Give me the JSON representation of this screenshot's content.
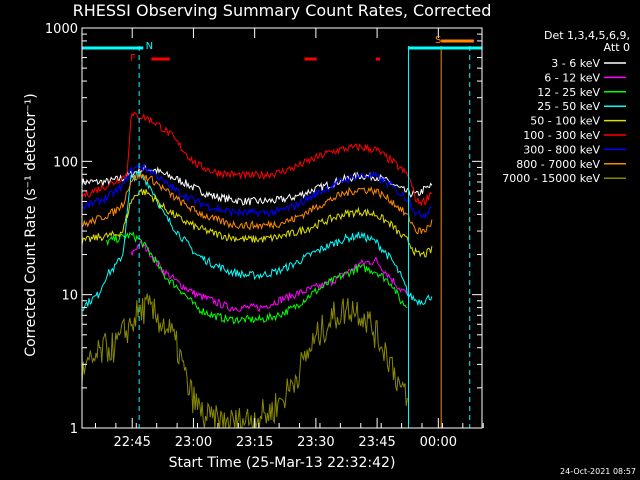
{
  "chart_data": {
    "type": "line",
    "title": "RHESSI Observing Summary Count Rates, Corrected",
    "xlabel": "Start Time (25-Mar-13 22:32:42)",
    "ylabel": "Corrected Count Rate (s⁻¹ detector⁻¹)",
    "yscale": "log",
    "ylim": [
      1,
      1000
    ],
    "xlim_minutes": [
      0,
      98
    ],
    "x_ticks": [
      {
        "label": "22:45",
        "minute": 12.3
      },
      {
        "label": "23:00",
        "minute": 27.3
      },
      {
        "label": "23:15",
        "minute": 42.3
      },
      {
        "label": "23:30",
        "minute": 57.3
      },
      {
        "label": "23:45",
        "minute": 72.3
      },
      {
        "label": "00:00",
        "minute": 87.3
      }
    ],
    "y_ticks": [
      {
        "label": "1",
        "value": 1
      },
      {
        "label": "10",
        "value": 10
      },
      {
        "label": "100",
        "value": 100
      },
      {
        "label": "1000",
        "value": 1000
      }
    ],
    "legend_header": [
      "Det 1,3,4,5,6,9,",
      "Att 0"
    ],
    "legend_position": "top-right",
    "grid": false,
    "series": [
      {
        "name": "3 - 6 keV",
        "color": "#ffffff",
        "points": [
          [
            0,
            70
          ],
          [
            6,
            70
          ],
          [
            10,
            75
          ],
          [
            12,
            80
          ],
          [
            14,
            86
          ],
          [
            16,
            88
          ],
          [
            18,
            86
          ],
          [
            20,
            80
          ],
          [
            24,
            72
          ],
          [
            28,
            62
          ],
          [
            32,
            55
          ],
          [
            36,
            52
          ],
          [
            40,
            50
          ],
          [
            44,
            50
          ],
          [
            48,
            51
          ],
          [
            52,
            54
          ],
          [
            56,
            60
          ],
          [
            60,
            66
          ],
          [
            64,
            73
          ],
          [
            68,
            78
          ],
          [
            72,
            77
          ],
          [
            76,
            68
          ],
          [
            78,
            62
          ],
          [
            80,
            58
          ],
          [
            82,
            56
          ],
          [
            84,
            62
          ],
          [
            86,
            66
          ]
        ]
      },
      {
        "name": "6 - 12 keV",
        "color": "#ff00ff",
        "points": [
          [
            12,
            20
          ],
          [
            14,
            24
          ],
          [
            16,
            22
          ],
          [
            18,
            18
          ],
          [
            20,
            15
          ],
          [
            24,
            12
          ],
          [
            28,
            10
          ],
          [
            32,
            9
          ],
          [
            36,
            8
          ],
          [
            40,
            8
          ],
          [
            44,
            8
          ],
          [
            48,
            9
          ],
          [
            52,
            10
          ],
          [
            56,
            11
          ],
          [
            60,
            12
          ],
          [
            64,
            14
          ],
          [
            68,
            17
          ],
          [
            72,
            18
          ],
          [
            76,
            13
          ],
          [
            78,
            11
          ],
          [
            80,
            10
          ]
        ]
      },
      {
        "name": "12 - 25 keV",
        "color": "#00ff00",
        "points": [
          [
            6,
            25
          ],
          [
            10,
            27
          ],
          [
            12,
            28
          ],
          [
            14,
            26
          ],
          [
            16,
            22
          ],
          [
            18,
            18
          ],
          [
            20,
            14
          ],
          [
            24,
            11
          ],
          [
            28,
            8
          ],
          [
            32,
            7
          ],
          [
            36,
            6.5
          ],
          [
            40,
            6.5
          ],
          [
            44,
            6.5
          ],
          [
            48,
            7
          ],
          [
            52,
            8
          ],
          [
            56,
            10
          ],
          [
            60,
            12
          ],
          [
            64,
            14
          ],
          [
            68,
            16
          ],
          [
            72,
            15
          ],
          [
            76,
            12
          ],
          [
            78,
            9
          ],
          [
            80,
            8
          ]
        ]
      },
      {
        "name": "25 - 50 keV",
        "color": "#00ffff",
        "points": [
          [
            0,
            8
          ],
          [
            2,
            9
          ],
          [
            4,
            10
          ],
          [
            6,
            14
          ],
          [
            8,
            16
          ],
          [
            10,
            20
          ],
          [
            12,
            75
          ],
          [
            14,
            80
          ],
          [
            16,
            70
          ],
          [
            18,
            55
          ],
          [
            20,
            40
          ],
          [
            24,
            28
          ],
          [
            28,
            20
          ],
          [
            32,
            17
          ],
          [
            36,
            15
          ],
          [
            40,
            14
          ],
          [
            44,
            14
          ],
          [
            48,
            15
          ],
          [
            52,
            17
          ],
          [
            56,
            20
          ],
          [
            60,
            23
          ],
          [
            64,
            26
          ],
          [
            68,
            28
          ],
          [
            72,
            25
          ],
          [
            76,
            18
          ],
          [
            78,
            14
          ],
          [
            80,
            10
          ],
          [
            82,
            9
          ],
          [
            84,
            9
          ],
          [
            86,
            10
          ]
        ]
      },
      {
        "name": "50 - 100 keV",
        "color": "#dddd00",
        "points": [
          [
            0,
            25
          ],
          [
            4,
            27
          ],
          [
            8,
            28
          ],
          [
            10,
            30
          ],
          [
            12,
            50
          ],
          [
            14,
            60
          ],
          [
            16,
            58
          ],
          [
            18,
            52
          ],
          [
            20,
            45
          ],
          [
            24,
            37
          ],
          [
            28,
            32
          ],
          [
            32,
            29
          ],
          [
            36,
            27
          ],
          [
            40,
            26
          ],
          [
            44,
            26
          ],
          [
            48,
            27
          ],
          [
            52,
            29
          ],
          [
            56,
            32
          ],
          [
            60,
            36
          ],
          [
            64,
            40
          ],
          [
            68,
            42
          ],
          [
            72,
            40
          ],
          [
            76,
            33
          ],
          [
            78,
            28
          ],
          [
            80,
            25
          ],
          [
            82,
            20
          ],
          [
            84,
            20
          ],
          [
            86,
            22
          ]
        ]
      },
      {
        "name": "100 - 300 keV",
        "color": "#ff0000",
        "points": [
          [
            0,
            55
          ],
          [
            4,
            62
          ],
          [
            8,
            70
          ],
          [
            11,
            80
          ],
          [
            12,
            220
          ],
          [
            14,
            220
          ],
          [
            16,
            210
          ],
          [
            18,
            195
          ],
          [
            20,
            175
          ],
          [
            22,
            155
          ],
          [
            24,
            130
          ],
          [
            26,
            110
          ],
          [
            28,
            95
          ],
          [
            32,
            84
          ],
          [
            36,
            80
          ],
          [
            40,
            78
          ],
          [
            44,
            79
          ],
          [
            48,
            82
          ],
          [
            52,
            90
          ],
          [
            56,
            102
          ],
          [
            60,
            115
          ],
          [
            64,
            124
          ],
          [
            68,
            128
          ],
          [
            72,
            122
          ],
          [
            76,
            100
          ],
          [
            78,
            88
          ],
          [
            80,
            78
          ],
          [
            82,
            50
          ],
          [
            84,
            50
          ],
          [
            86,
            62
          ]
        ]
      },
      {
        "name": "300 - 800 keV",
        "color": "#0000ff",
        "points": [
          [
            0,
            45
          ],
          [
            4,
            50
          ],
          [
            8,
            58
          ],
          [
            10,
            66
          ],
          [
            12,
            85
          ],
          [
            14,
            92
          ],
          [
            16,
            88
          ],
          [
            18,
            80
          ],
          [
            20,
            70
          ],
          [
            24,
            58
          ],
          [
            28,
            50
          ],
          [
            32,
            45
          ],
          [
            36,
            42
          ],
          [
            40,
            41
          ],
          [
            44,
            41
          ],
          [
            48,
            42
          ],
          [
            52,
            46
          ],
          [
            56,
            54
          ],
          [
            60,
            63
          ],
          [
            64,
            72
          ],
          [
            68,
            78
          ],
          [
            72,
            77
          ],
          [
            76,
            65
          ],
          [
            78,
            57
          ],
          [
            80,
            52
          ],
          [
            82,
            40
          ],
          [
            84,
            40
          ],
          [
            86,
            48
          ]
        ]
      },
      {
        "name": "800 - 7000 keV",
        "color": "#ff8800",
        "points": [
          [
            0,
            33
          ],
          [
            4,
            37
          ],
          [
            8,
            42
          ],
          [
            10,
            48
          ],
          [
            12,
            72
          ],
          [
            14,
            78
          ],
          [
            16,
            76
          ],
          [
            18,
            70
          ],
          [
            20,
            62
          ],
          [
            24,
            50
          ],
          [
            28,
            42
          ],
          [
            32,
            37
          ],
          [
            36,
            34
          ],
          [
            40,
            33
          ],
          [
            44,
            33
          ],
          [
            48,
            34
          ],
          [
            52,
            37
          ],
          [
            56,
            43
          ],
          [
            60,
            50
          ],
          [
            64,
            57
          ],
          [
            68,
            62
          ],
          [
            72,
            60
          ],
          [
            76,
            50
          ],
          [
            78,
            44
          ],
          [
            80,
            38
          ],
          [
            82,
            30
          ],
          [
            84,
            30
          ],
          [
            86,
            36
          ]
        ]
      },
      {
        "name": "7000 - 15000 keV",
        "color": "#888800",
        "points": [
          [
            0,
            2.5
          ],
          [
            2,
            3
          ],
          [
            4,
            3.5
          ],
          [
            6,
            4
          ],
          [
            8,
            4
          ],
          [
            10,
            5
          ],
          [
            12,
            6
          ],
          [
            14,
            7.5
          ],
          [
            16,
            8
          ],
          [
            18,
            7
          ],
          [
            20,
            6
          ],
          [
            22,
            5
          ],
          [
            24,
            3.5
          ],
          [
            26,
            2
          ],
          [
            28,
            1.5
          ],
          [
            30,
            1.2
          ],
          [
            34,
            1.1
          ],
          [
            38,
            1.1
          ],
          [
            42,
            1.2
          ],
          [
            46,
            1.3
          ],
          [
            50,
            1.8
          ],
          [
            54,
            3
          ],
          [
            56,
            4
          ],
          [
            58,
            5
          ],
          [
            60,
            6
          ],
          [
            62,
            7
          ],
          [
            64,
            7.5
          ],
          [
            66,
            8
          ],
          [
            68,
            7.5
          ],
          [
            70,
            6.5
          ],
          [
            72,
            5
          ],
          [
            74,
            4
          ],
          [
            76,
            3
          ],
          [
            78,
            2
          ],
          [
            80,
            1.5
          ]
        ]
      }
    ],
    "annotations": [
      {
        "label": "N",
        "color": "#00ffff"
      },
      {
        "label": "F",
        "color": "#ff0000"
      },
      {
        "label": "S",
        "color": "#ff8800"
      }
    ],
    "flag_bars": [
      {
        "color": "#00ffff",
        "row": "top",
        "from": 0,
        "to": 15
      },
      {
        "color": "#00ffff",
        "row": "top",
        "from": 80,
        "to": 98
      },
      {
        "color": "#ff0000",
        "row": "mid",
        "from": 17,
        "to": 21.5
      },
      {
        "color": "#ff0000",
        "row": "mid",
        "from": 54.5,
        "to": 57.5
      },
      {
        "color": "#ff0000",
        "row": "mid",
        "from": 72,
        "to": 73
      },
      {
        "color": "#ff8800",
        "row": "high",
        "from": 88,
        "to": 96
      }
    ],
    "vertical_markers": [
      {
        "color": "#00ffff",
        "minute": 14,
        "style": "dashed"
      },
      {
        "color": "#00ffff",
        "minute": 80,
        "style": "solid"
      },
      {
        "color": "#ff8800",
        "minute": 88,
        "style": "solid"
      },
      {
        "color": "#00ffff",
        "minute": 95,
        "style": "dashed"
      }
    ]
  },
  "footer_timestamp": "24-Oct-2021 08:57"
}
